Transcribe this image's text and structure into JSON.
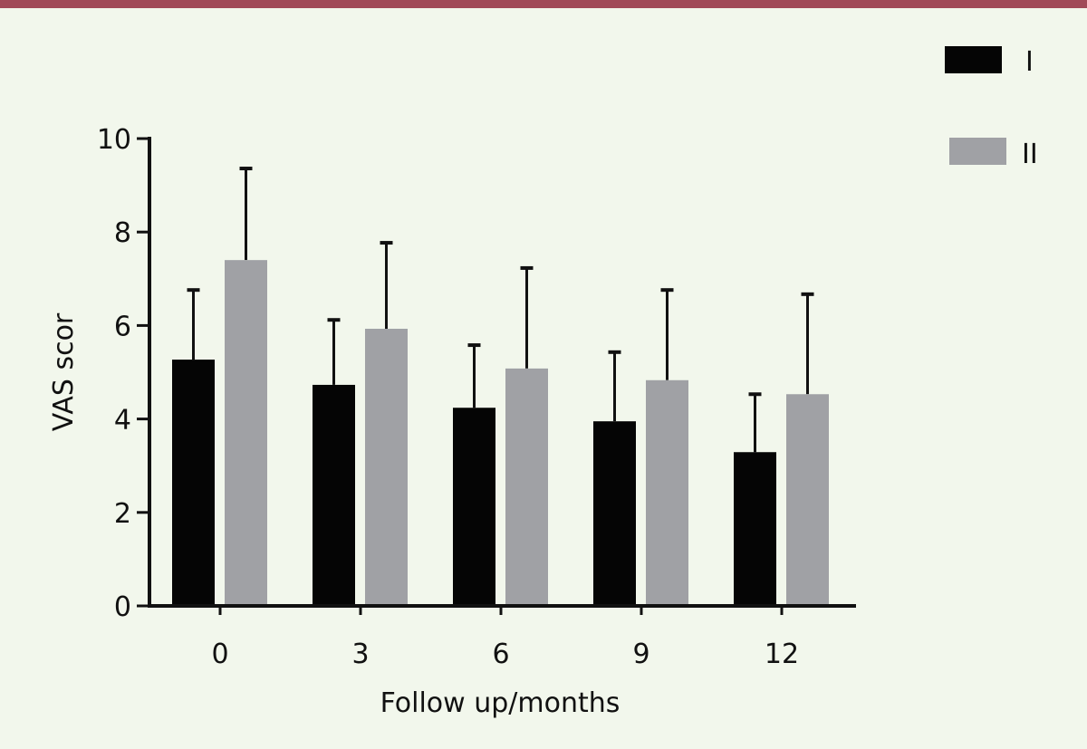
{
  "chart_data": {
    "type": "bar",
    "title": "",
    "xlabel": "Follow up/months",
    "ylabel": "VAS scor",
    "categories": [
      "0",
      "3",
      "6",
      "9",
      "12"
    ],
    "ylim": [
      0,
      10
    ],
    "yticks": [
      "0",
      "2",
      "4",
      "6",
      "8",
      "10"
    ],
    "grid": false,
    "legend_placement": "top-right",
    "series": [
      {
        "name": "I",
        "color": "#050505",
        "values": [
          5.27,
          4.73,
          4.24,
          3.95,
          3.29
        ],
        "error_upper": [
          6.76,
          6.12,
          5.58,
          5.43,
          4.53
        ]
      },
      {
        "name": "II",
        "color": "#a0a1a5",
        "values": [
          7.4,
          5.93,
          5.08,
          4.83,
          4.53
        ],
        "error_upper": [
          9.36,
          7.77,
          7.23,
          6.76,
          6.67
        ]
      }
    ]
  },
  "colors": {
    "background": "#f2f7ec",
    "top_border": "#a14a58"
  }
}
